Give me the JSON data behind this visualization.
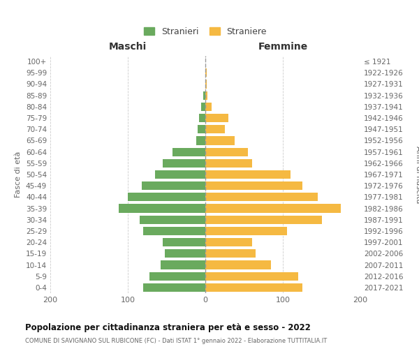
{
  "age_groups": [
    "0-4",
    "5-9",
    "10-14",
    "15-19",
    "20-24",
    "25-29",
    "30-34",
    "35-39",
    "40-44",
    "45-49",
    "50-54",
    "55-59",
    "60-64",
    "65-69",
    "70-74",
    "75-79",
    "80-84",
    "85-89",
    "90-94",
    "95-99",
    "100+"
  ],
  "birth_years": [
    "2017-2021",
    "2012-2016",
    "2007-2011",
    "2002-2006",
    "1997-2001",
    "1992-1996",
    "1987-1991",
    "1982-1986",
    "1977-1981",
    "1972-1976",
    "1967-1971",
    "1962-1966",
    "1957-1961",
    "1952-1956",
    "1947-1951",
    "1942-1946",
    "1937-1941",
    "1932-1936",
    "1927-1931",
    "1922-1926",
    "≤ 1921"
  ],
  "maschi": [
    80,
    72,
    58,
    52,
    55,
    80,
    85,
    112,
    100,
    82,
    65,
    55,
    42,
    12,
    10,
    8,
    5,
    3,
    0,
    0,
    0
  ],
  "femmine": [
    125,
    120,
    85,
    65,
    60,
    105,
    150,
    175,
    145,
    125,
    110,
    60,
    55,
    38,
    25,
    30,
    8,
    3,
    2,
    2,
    0
  ],
  "color_maschi": "#6aaa5e",
  "color_femmine": "#f5b942",
  "title": "Popolazione per cittadinanza straniera per età e sesso - 2022",
  "subtitle": "COMUNE DI SAVIGNANO SUL RUBICONE (FC) - Dati ISTAT 1° gennaio 2022 - Elaborazione TUTTITALIA.IT",
  "ylabel_left": "Fasce di età",
  "ylabel_right": "Anni di nascita",
  "header_left": "Maschi",
  "header_right": "Femmine",
  "legend_stranieri": "Stranieri",
  "legend_straniere": "Straniere",
  "xlim": 200,
  "background_color": "#ffffff",
  "grid_color": "#cccccc",
  "bar_height": 0.75
}
